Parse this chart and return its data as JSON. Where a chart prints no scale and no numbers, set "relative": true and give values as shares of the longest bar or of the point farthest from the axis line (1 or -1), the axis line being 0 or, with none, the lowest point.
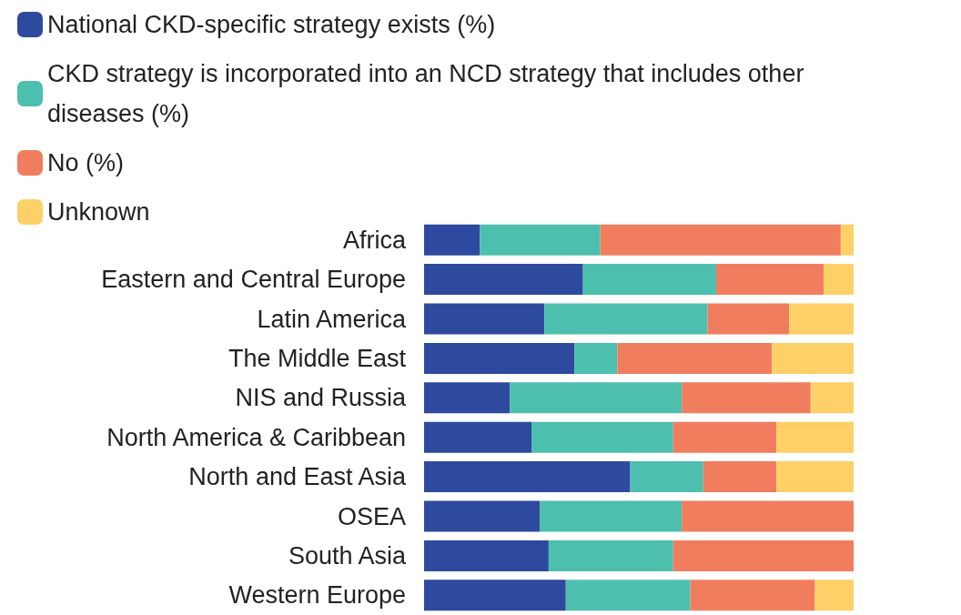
{
  "chart_data": {
    "type": "bar",
    "orientation": "horizontal",
    "stacked": true,
    "relative": true,
    "legend": "top left",
    "categories": [
      "Africa",
      "Eastern and Central Europe",
      "Latin America",
      "The Middle East",
      "NIS and Russia",
      "North America & Caribbean",
      "North and East Asia",
      "OSEA",
      "South Asia",
      "Western Europe"
    ],
    "series": [
      {
        "name": "National CKD-specific strategy exists (%)",
        "color": "#2e4a9e",
        "values": [
          0.13,
          0.37,
          0.28,
          0.35,
          0.2,
          0.25,
          0.48,
          0.27,
          0.29,
          0.33
        ]
      },
      {
        "name": "CKD strategy is incorporated into an NCD strategy that includes other diseases (%)",
        "color": "#4dbfae",
        "values": [
          0.28,
          0.31,
          0.38,
          0.1,
          0.4,
          0.33,
          0.17,
          0.33,
          0.29,
          0.29
        ]
      },
      {
        "name": "No (%)",
        "color": "#f07e5e",
        "values": [
          0.56,
          0.25,
          0.19,
          0.36,
          0.3,
          0.24,
          0.17,
          0.4,
          0.42,
          0.29
        ]
      },
      {
        "name": "Unknown",
        "color": "#fdd068",
        "values": [
          0.03,
          0.07,
          0.15,
          0.19,
          0.1,
          0.18,
          0.18,
          0,
          0,
          0.09
        ]
      }
    ]
  }
}
